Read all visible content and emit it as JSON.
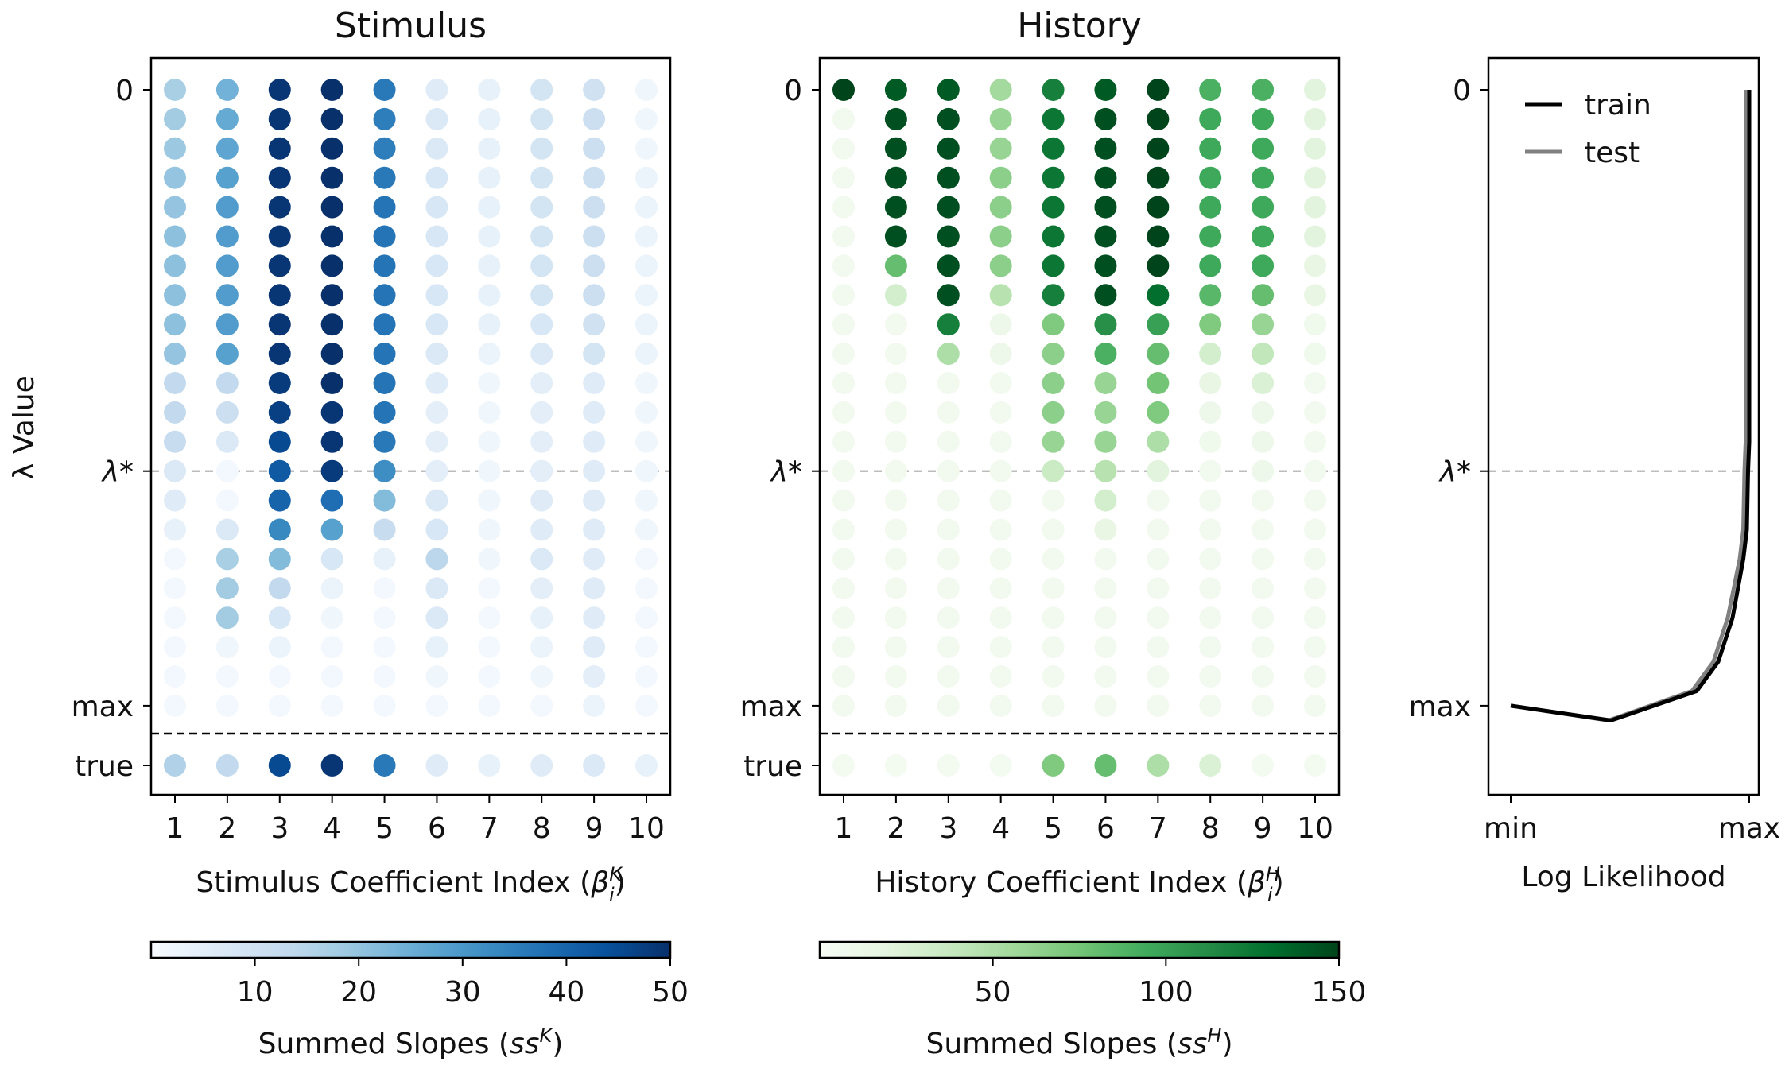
{
  "chart_data": [
    {
      "id": "stimulus",
      "type": "scatter",
      "title": "Stimulus",
      "xlabel_main": "Stimulus Coefficient Index (",
      "xlabel_sym": "β",
      "xlabel_sub": "i",
      "xlabel_sup": "K",
      "xlabel_end": ")",
      "ylabel": "λ Value",
      "x_ticks": [
        "1",
        "2",
        "3",
        "4",
        "5",
        "6",
        "7",
        "8",
        "9",
        "10"
      ],
      "y_tick_labels": {
        "zero": "0",
        "lambda_star": "λ*",
        "max": "max",
        "true": "true"
      },
      "lambda_star_row": 13,
      "n_rows": 22,
      "colormap": "Blues",
      "rows": [
        [
          17,
          24,
          49,
          50,
          36,
          6,
          4,
          9,
          10,
          2
        ],
        [
          18,
          26,
          49,
          50,
          35,
          7,
          4,
          9,
          11,
          2
        ],
        [
          19,
          27,
          49,
          50,
          35,
          7,
          4,
          9,
          11,
          2
        ],
        [
          20,
          28,
          49,
          50,
          36,
          8,
          4,
          9,
          11,
          3
        ],
        [
          20,
          29,
          49,
          50,
          37,
          8,
          4,
          9,
          11,
          3
        ],
        [
          21,
          29,
          49,
          50,
          37,
          8,
          4,
          9,
          11,
          3
        ],
        [
          21,
          29,
          49,
          50,
          37,
          8,
          4,
          9,
          11,
          3
        ],
        [
          21,
          29,
          49,
          50,
          37,
          8,
          4,
          9,
          11,
          3
        ],
        [
          21,
          29,
          49,
          50,
          37,
          8,
          4,
          8,
          10,
          3
        ],
        [
          20,
          28,
          49,
          50,
          37,
          7,
          3,
          7,
          9,
          3
        ],
        [
          13,
          13,
          48,
          50,
          37,
          6,
          2,
          5,
          6,
          2
        ],
        [
          13,
          11,
          47,
          49,
          37,
          5,
          2,
          5,
          6,
          2
        ],
        [
          12,
          7,
          45,
          49,
          36,
          5,
          2,
          5,
          6,
          2
        ],
        [
          7,
          1,
          42,
          48,
          32,
          5,
          2,
          5,
          6,
          2
        ],
        [
          6,
          1,
          40,
          38,
          22,
          7,
          2,
          6,
          6,
          2
        ],
        [
          4,
          7,
          33,
          28,
          12,
          8,
          2,
          6,
          6,
          2
        ],
        [
          1,
          17,
          22,
          8,
          4,
          14,
          2,
          7,
          6,
          1
        ],
        [
          1,
          18,
          13,
          3,
          1,
          7,
          1,
          5,
          6,
          1
        ],
        [
          1,
          18,
          8,
          2,
          1,
          7,
          1,
          4,
          6,
          1
        ],
        [
          1,
          2,
          3,
          1,
          1,
          4,
          1,
          3,
          6,
          1
        ],
        [
          1,
          1,
          1,
          1,
          1,
          2,
          1,
          2,
          5,
          1
        ],
        [
          1,
          1,
          1,
          1,
          1,
          1,
          1,
          1,
          3,
          1
        ]
      ],
      "true_row": [
        16,
        13,
        45,
        49,
        36,
        6,
        4,
        6,
        7,
        4
      ],
      "colorbar": {
        "min": 0,
        "max": 50,
        "ticks": [
          10,
          20,
          30,
          40,
          50
        ],
        "label_main": "Summed Slopes (",
        "label_sym": "ss",
        "label_sup": "K",
        "label_end": ")"
      }
    },
    {
      "id": "history",
      "type": "scatter",
      "title": "History",
      "xlabel_main": "History Coefficient Index (",
      "xlabel_sym": "β",
      "xlabel_sub": "i",
      "xlabel_sup": "H",
      "xlabel_end": ")",
      "x_ticks": [
        "1",
        "2",
        "3",
        "4",
        "5",
        "6",
        "7",
        "8",
        "9",
        "10"
      ],
      "y_tick_labels": {
        "zero": "0",
        "lambda_star": "λ*",
        "max": "max",
        "true": "true"
      },
      "lambda_star_row": 13,
      "n_rows": 22,
      "colormap": "Greens",
      "rows": [
        [
          150,
          140,
          140,
          55,
          120,
          140,
          150,
          90,
          90,
          20
        ],
        [
          5,
          145,
          145,
          60,
          125,
          145,
          150,
          95,
          95,
          20
        ],
        [
          5,
          145,
          145,
          60,
          125,
          145,
          150,
          95,
          95,
          20
        ],
        [
          5,
          145,
          145,
          65,
          125,
          145,
          150,
          95,
          95,
          20
        ],
        [
          5,
          145,
          145,
          65,
          125,
          145,
          150,
          95,
          95,
          20
        ],
        [
          5,
          145,
          145,
          65,
          125,
          145,
          150,
          95,
          95,
          20
        ],
        [
          5,
          80,
          145,
          65,
          125,
          145,
          150,
          95,
          95,
          15
        ],
        [
          5,
          30,
          145,
          45,
          120,
          145,
          130,
          85,
          80,
          15
        ],
        [
          5,
          5,
          120,
          10,
          70,
          110,
          100,
          70,
          60,
          8
        ],
        [
          5,
          5,
          50,
          10,
          65,
          90,
          80,
          30,
          40,
          8
        ],
        [
          5,
          5,
          5,
          5,
          65,
          60,
          75,
          15,
          25,
          5
        ],
        [
          5,
          5,
          5,
          5,
          65,
          60,
          70,
          10,
          10,
          5
        ],
        [
          5,
          5,
          5,
          5,
          60,
          60,
          50,
          8,
          10,
          5
        ],
        [
          5,
          5,
          5,
          5,
          35,
          45,
          20,
          5,
          10,
          5
        ],
        [
          5,
          5,
          5,
          5,
          5,
          30,
          5,
          5,
          5,
          5
        ],
        [
          5,
          5,
          5,
          5,
          5,
          15,
          5,
          5,
          5,
          5
        ],
        [
          5,
          5,
          5,
          5,
          5,
          5,
          5,
          5,
          5,
          5
        ],
        [
          5,
          5,
          5,
          5,
          5,
          5,
          5,
          5,
          5,
          5
        ],
        [
          5,
          5,
          5,
          5,
          5,
          5,
          5,
          5,
          5,
          5
        ],
        [
          5,
          5,
          5,
          5,
          5,
          5,
          5,
          5,
          5,
          5
        ],
        [
          5,
          5,
          5,
          5,
          5,
          5,
          5,
          5,
          5,
          5
        ],
        [
          5,
          5,
          5,
          5,
          5,
          5,
          5,
          5,
          5,
          5
        ]
      ],
      "true_row": [
        4,
        4,
        4,
        4,
        70,
        80,
        50,
        25,
        4,
        4
      ],
      "colorbar": {
        "min": 0,
        "max": 150,
        "ticks": [
          50,
          100,
          150
        ],
        "label_main": "Summed Slopes (",
        "label_sym": "ss",
        "label_sup": "H",
        "label_end": ")"
      }
    },
    {
      "id": "loglik",
      "type": "line",
      "xlabel": "Log Likelihood",
      "x_ticks": [
        "min",
        "max"
      ],
      "y_tick_labels": {
        "zero": "0",
        "lambda_star": "λ*",
        "max": "max"
      },
      "legend_position": "top-left",
      "series": [
        {
          "name": "train",
          "color": "#000000",
          "points": [
            [
              1.0,
              0
            ],
            [
              1.0,
              3
            ],
            [
              1.0,
              6
            ],
            [
              1.0,
              9
            ],
            [
              1.0,
              12
            ],
            [
              0.995,
              13
            ],
            [
              0.99,
              15
            ],
            [
              0.975,
              16
            ],
            [
              0.93,
              18
            ],
            [
              0.87,
              19.5
            ],
            [
              0.78,
              20.5
            ],
            [
              0.42,
              21.5
            ],
            [
              0.0,
              22
            ]
          ]
        },
        {
          "name": "test",
          "color": "#808080",
          "points": [
            [
              0.985,
              0
            ],
            [
              0.985,
              3
            ],
            [
              0.985,
              6
            ],
            [
              0.985,
              9
            ],
            [
              0.985,
              12
            ],
            [
              0.98,
              13
            ],
            [
              0.975,
              15
            ],
            [
              0.96,
              16
            ],
            [
              0.91,
              18
            ],
            [
              0.85,
              19.5
            ],
            [
              0.76,
              20.5
            ],
            [
              0.41,
              21.5
            ],
            [
              0.0,
              22
            ]
          ]
        }
      ]
    }
  ]
}
